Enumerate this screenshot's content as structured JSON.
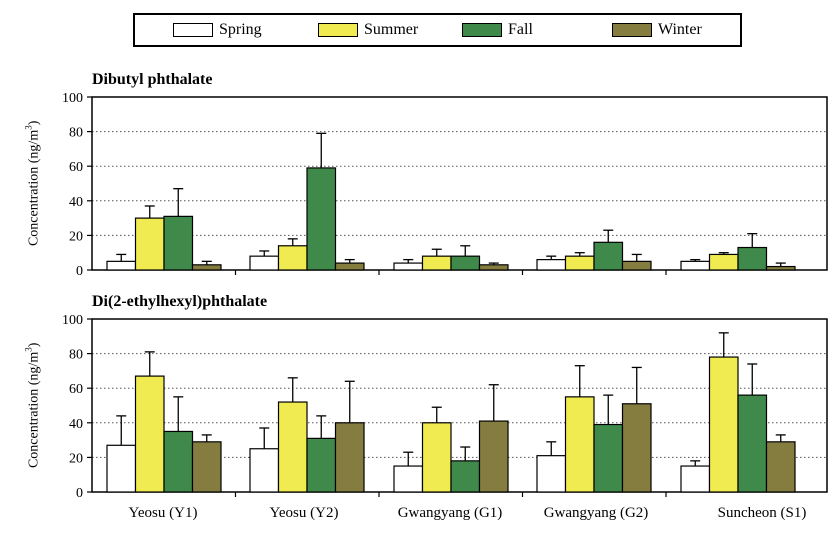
{
  "legend": [
    {
      "name": "Spring",
      "color": "#ffffff"
    },
    {
      "name": "Summer",
      "color": "#f0eb50"
    },
    {
      "name": "Fall",
      "color": "#3f8a4a"
    },
    {
      "name": "Winter",
      "color": "#857d40"
    }
  ],
  "ylabel_main": "Concentration (ng/m",
  "ylabel_sup": "3",
  "ylabel_end": ")",
  "sites": [
    "Yeosu (Y1)",
    "Yeosu (Y2)",
    "Gwangyang (G1)",
    "Gwangyang (G2)",
    "Suncheon (S1)"
  ],
  "chart_data": [
    {
      "type": "bar",
      "title": "Dibutyl phthalate",
      "ylabel": "Concentration (ng/m3)",
      "ylim": [
        0,
        100
      ],
      "yticks": [
        0,
        20,
        40,
        60,
        80,
        100
      ],
      "categories": [
        "Yeosu (Y1)",
        "Yeosu (Y2)",
        "Gwangyang (G1)",
        "Gwangyang (G2)",
        "Suncheon (S1)"
      ],
      "series": [
        {
          "name": "Spring",
          "values": [
            5,
            8,
            4,
            6,
            5
          ],
          "errors": [
            4,
            3,
            2,
            2,
            1
          ]
        },
        {
          "name": "Summer",
          "values": [
            30,
            14,
            8,
            8,
            9
          ],
          "errors": [
            7,
            4,
            4,
            2,
            1
          ]
        },
        {
          "name": "Fall",
          "values": [
            31,
            59,
            8,
            16,
            13
          ],
          "errors": [
            16,
            20,
            6,
            7,
            8
          ]
        },
        {
          "name": "Winter",
          "values": [
            3,
            4,
            3,
            5,
            2
          ],
          "errors": [
            2,
            2,
            1,
            4,
            2
          ]
        }
      ]
    },
    {
      "type": "bar",
      "title": "Di(2-ethylhexyl)phthalate",
      "ylabel": "Concentration (ng/m3)",
      "ylim": [
        0,
        100
      ],
      "yticks": [
        0,
        20,
        40,
        60,
        80,
        100
      ],
      "categories": [
        "Yeosu (Y1)",
        "Yeosu (Y2)",
        "Gwangyang (G1)",
        "Gwangyang (G2)",
        "Suncheon (S1)"
      ],
      "series": [
        {
          "name": "Spring",
          "values": [
            27,
            25,
            15,
            21,
            15
          ],
          "errors": [
            17,
            12,
            8,
            8,
            3
          ]
        },
        {
          "name": "Summer",
          "values": [
            67,
            52,
            40,
            55,
            78
          ],
          "errors": [
            14,
            14,
            9,
            18,
            14
          ]
        },
        {
          "name": "Fall",
          "values": [
            35,
            31,
            18,
            39,
            56
          ],
          "errors": [
            20,
            13,
            8,
            17,
            18
          ]
        },
        {
          "name": "Winter",
          "values": [
            29,
            40,
            41,
            51,
            29
          ],
          "errors": [
            4,
            24,
            21,
            21,
            4
          ]
        }
      ]
    }
  ]
}
